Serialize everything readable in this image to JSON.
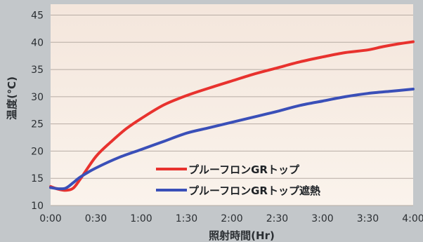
{
  "chart_data": {
    "type": "line",
    "ylabel": "温度(℃)",
    "xlabel": "照射時間(Hr)",
    "xlim": [
      0,
      240
    ],
    "ylim": [
      10,
      47
    ],
    "x_ticks": [
      0,
      30,
      60,
      90,
      120,
      150,
      180,
      210,
      240
    ],
    "x_tick_labels": [
      "0:00",
      "0:30",
      "1:00",
      "1:30",
      "2:00",
      "2:30",
      "3:00",
      "3:30",
      "4:00"
    ],
    "y_ticks": [
      10,
      15,
      20,
      25,
      30,
      35,
      40,
      45
    ],
    "grid": "horizontal",
    "legend": "bottom-right",
    "series": [
      {
        "name": "プルーフロンGRトップ",
        "color": "#e8322e",
        "x": [
          0,
          5,
          10,
          15,
          20,
          30,
          40,
          50,
          60,
          75,
          90,
          105,
          120,
          135,
          150,
          165,
          180,
          195,
          210,
          220,
          230,
          240
        ],
        "y": [
          13.5,
          13.0,
          12.8,
          13.2,
          15,
          19,
          21.7,
          24.1,
          26,
          28.5,
          30.2,
          31.6,
          32.9,
          34.2,
          35.3,
          36.4,
          37.3,
          38.1,
          38.6,
          39.2,
          39.7,
          40.1
        ]
      },
      {
        "name": "プルーフロンGRトップ遮熱",
        "color": "#3a4fb8",
        "x": [
          0,
          5,
          10,
          15,
          20,
          30,
          45,
          60,
          75,
          90,
          105,
          120,
          135,
          150,
          165,
          180,
          195,
          210,
          225,
          240
        ],
        "y": [
          13.3,
          13.1,
          13.2,
          14.2,
          15.3,
          16.9,
          18.8,
          20.3,
          21.8,
          23.3,
          24.3,
          25.3,
          26.3,
          27.3,
          28.4,
          29.2,
          30.0,
          30.6,
          31.0,
          31.4
        ]
      }
    ]
  }
}
